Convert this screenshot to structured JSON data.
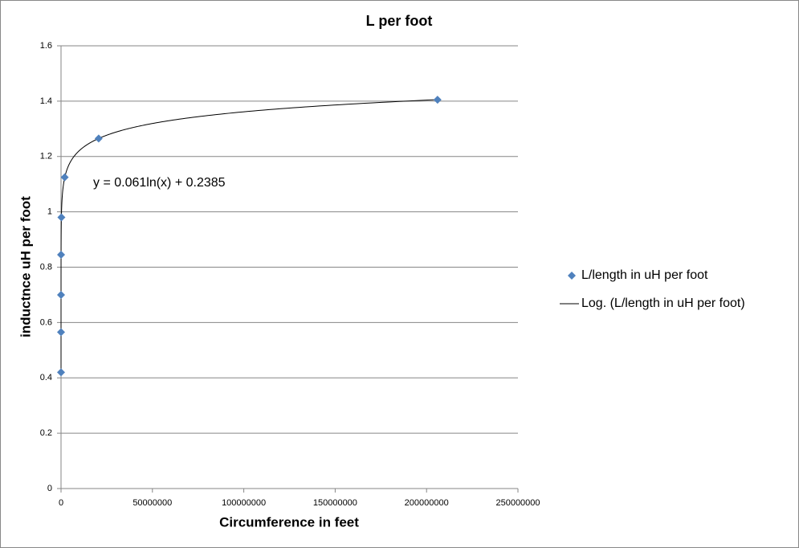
{
  "chart_data": {
    "type": "scatter",
    "title": "L per foot",
    "x_label": "Circumference in feet",
    "y_label": "inductnce uH per foot",
    "series": [
      {
        "name": "L/length in  uH per foot",
        "color": "#4f81bd",
        "x": [
          20,
          200,
          2000,
          20000,
          200000,
          2000000,
          20600000,
          206000000
        ],
        "values": [
          0.42,
          0.565,
          0.7,
          0.845,
          0.98,
          1.125,
          1.265,
          1.405
        ]
      }
    ],
    "trendline": {
      "type": "log",
      "name": "Log. (L/length in  uH per foot)",
      "color": "#000000",
      "equation": "y = 0.061ln(x) + 0.2385"
    },
    "xlim": [
      0,
      250000000
    ],
    "xticks": [
      0,
      50000000,
      100000000,
      150000000,
      200000000,
      250000000
    ],
    "ylim": [
      0,
      1.6
    ],
    "yticks": [
      0,
      0.2,
      0.4,
      0.6,
      0.8,
      1,
      1.2,
      1.4,
      1.6
    ],
    "grid": true,
    "legend": "right"
  }
}
